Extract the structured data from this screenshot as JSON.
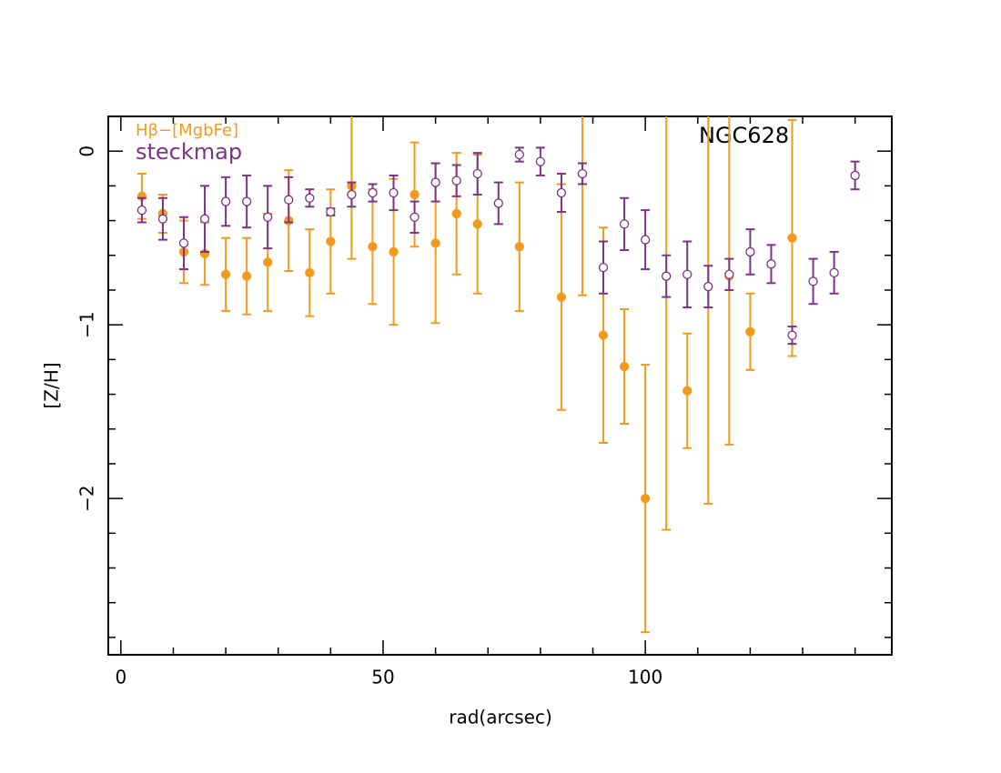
{
  "chart_data": {
    "type": "scatter",
    "annotation": "NGC628",
    "xlabel": "rad(arcsec)",
    "ylabel": "[Z/H]",
    "xlim": [
      -2.4,
      147
    ],
    "ylim": [
      -2.9,
      0.2
    ],
    "xticks": [
      0,
      50,
      100
    ],
    "yticks": [
      {
        "value": -2,
        "label": "−2"
      },
      {
        "value": -1,
        "label": "−1"
      },
      0
    ],
    "xminorticks": [
      10,
      20,
      30,
      40,
      60,
      70,
      80,
      90,
      110,
      120,
      130,
      140
    ],
    "yminorticks": [
      -2.8,
      -2.6,
      -2.4,
      -2.2,
      -1.8,
      -1.6,
      -1.4,
      -1.2,
      -0.8,
      -0.6,
      -0.4,
      -0.2
    ],
    "legend": "top-left",
    "series": [
      {
        "name": "Hβ−[MgbFe]",
        "color": "#f39a1e",
        "marker": "filled",
        "x": [
          4,
          8,
          12,
          16,
          20,
          24,
          28,
          32,
          36,
          40,
          44,
          48,
          52,
          56,
          60,
          64,
          68,
          76,
          84,
          88,
          92,
          96,
          100,
          104,
          108,
          112,
          116,
          120,
          128
        ],
        "values": [
          -0.26,
          -0.36,
          -0.58,
          -0.59,
          -0.71,
          -0.72,
          -0.64,
          -0.4,
          -0.7,
          -0.52,
          -0.2,
          -0.55,
          -0.58,
          -0.25,
          -0.53,
          -0.36,
          -0.42,
          -0.55,
          -0.84,
          -0.13,
          -1.06,
          -1.24,
          -2.0,
          -0.72,
          -1.38,
          -0.78,
          -0.72,
          -1.04,
          -0.5
        ],
        "errors": [
          0.13,
          0.11,
          0.18,
          0.18,
          0.21,
          0.22,
          0.28,
          0.29,
          0.25,
          0.3,
          0.42,
          0.33,
          0.42,
          0.3,
          0.46,
          0.35,
          0.4,
          0.37,
          0.65,
          0.7,
          0.62,
          0.33,
          0.77,
          1.46,
          0.33,
          1.25,
          0.97,
          0.22,
          0.68
        ]
      },
      {
        "name": "steckmap",
        "color": "#7d3388",
        "marker": "open",
        "x": [
          4,
          8,
          12,
          16,
          20,
          24,
          28,
          32,
          36,
          40,
          44,
          48,
          52,
          56,
          60,
          64,
          68,
          72,
          76,
          80,
          84,
          88,
          92,
          96,
          100,
          104,
          108,
          112,
          116,
          120,
          124,
          128,
          132,
          136,
          140
        ],
        "values": [
          -0.34,
          -0.39,
          -0.53,
          -0.39,
          -0.29,
          -0.29,
          -0.38,
          -0.28,
          -0.27,
          -0.35,
          -0.25,
          -0.24,
          -0.24,
          -0.38,
          -0.18,
          -0.17,
          -0.13,
          -0.3,
          -0.02,
          -0.06,
          -0.24,
          -0.13,
          -0.67,
          -0.42,
          -0.51,
          -0.72,
          -0.71,
          -0.78,
          -0.71,
          -0.58,
          -0.65,
          -1.06,
          -0.75,
          -0.7,
          -0.14
        ],
        "errors": [
          0.07,
          0.12,
          0.15,
          0.19,
          0.14,
          0.15,
          0.18,
          0.13,
          0.05,
          0.02,
          0.07,
          0.05,
          0.1,
          0.09,
          0.11,
          0.09,
          0.12,
          0.12,
          0.04,
          0.08,
          0.11,
          0.06,
          0.15,
          0.15,
          0.17,
          0.12,
          0.19,
          0.12,
          0.09,
          0.13,
          0.11,
          0.05,
          0.13,
          0.12,
          0.08
        ]
      }
    ]
  }
}
